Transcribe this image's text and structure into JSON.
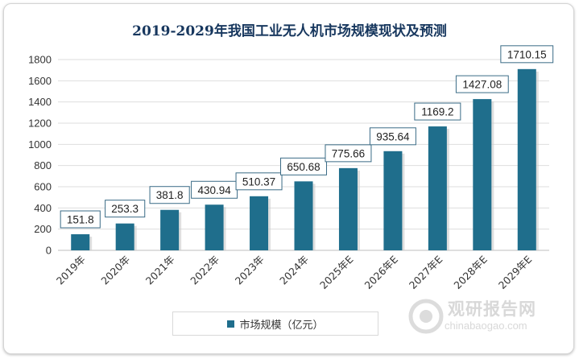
{
  "chart_data": {
    "type": "bar",
    "title": "2019-2029年我国工业无人机市场规模现状及预测",
    "categories": [
      "2019年",
      "2020年",
      "2021年",
      "2022年",
      "2023年",
      "2024年",
      "2025年E",
      "2026年E",
      "2027年E",
      "2028年E",
      "2029年E"
    ],
    "series": [
      {
        "name": "市场规模（亿元）",
        "values": [
          151.8,
          253.3,
          381.8,
          430.94,
          510.37,
          650.68,
          775.66,
          935.64,
          1169.2,
          1427.08,
          1710.15
        ],
        "labels": [
          "151.8",
          "253.3",
          "381.8",
          "430.94",
          "510.37",
          "650.68",
          "775.66",
          "935.64",
          "1169.2",
          "1427.08",
          "1710.15"
        ],
        "color": "#1f6e8c"
      }
    ],
    "ylim": [
      0,
      1800
    ],
    "yticks": [
      0,
      200,
      400,
      600,
      800,
      1000,
      1200,
      1400,
      1600,
      1800
    ],
    "grid": true,
    "legend_position": "bottom"
  },
  "watermark": {
    "main": "观研报告网",
    "sub": "chinabaogao.com"
  }
}
